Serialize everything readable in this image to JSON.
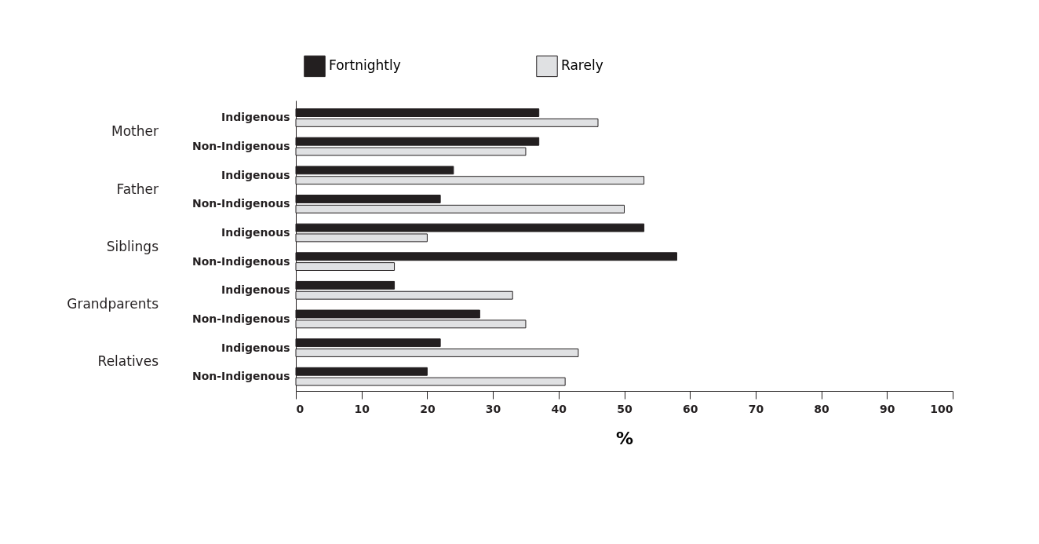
{
  "chart_data": {
    "type": "bar",
    "orientation": "horizontal",
    "categories": [
      "Indigenous",
      "Non-Indigenous",
      "Indigenous",
      "Non-Indigenous",
      "Indigenous",
      "Non-Indigenous",
      "Indigenous",
      "Non-Indigenous",
      "Indigenous",
      "Non-Indigenous"
    ],
    "annotations": [
      "Mother",
      "Father",
      "Siblings",
      "Grandparents",
      "Relatives"
    ],
    "xlabel": "%",
    "xlim": [
      0,
      100
    ],
    "xticks": [
      0,
      10,
      20,
      30,
      40,
      50,
      60,
      70,
      80,
      90,
      100
    ],
    "grid": false,
    "legend": "top",
    "series": [
      {
        "name": "Fortnightly",
        "color": "#231f20",
        "values": [
          37,
          37,
          24,
          22,
          53,
          58,
          15,
          28,
          22,
          20
        ]
      },
      {
        "name": "Rarely",
        "color": "#e0e1e3",
        "values": [
          46,
          35,
          53,
          50,
          20,
          15,
          33,
          35,
          43,
          41
        ]
      }
    ]
  }
}
